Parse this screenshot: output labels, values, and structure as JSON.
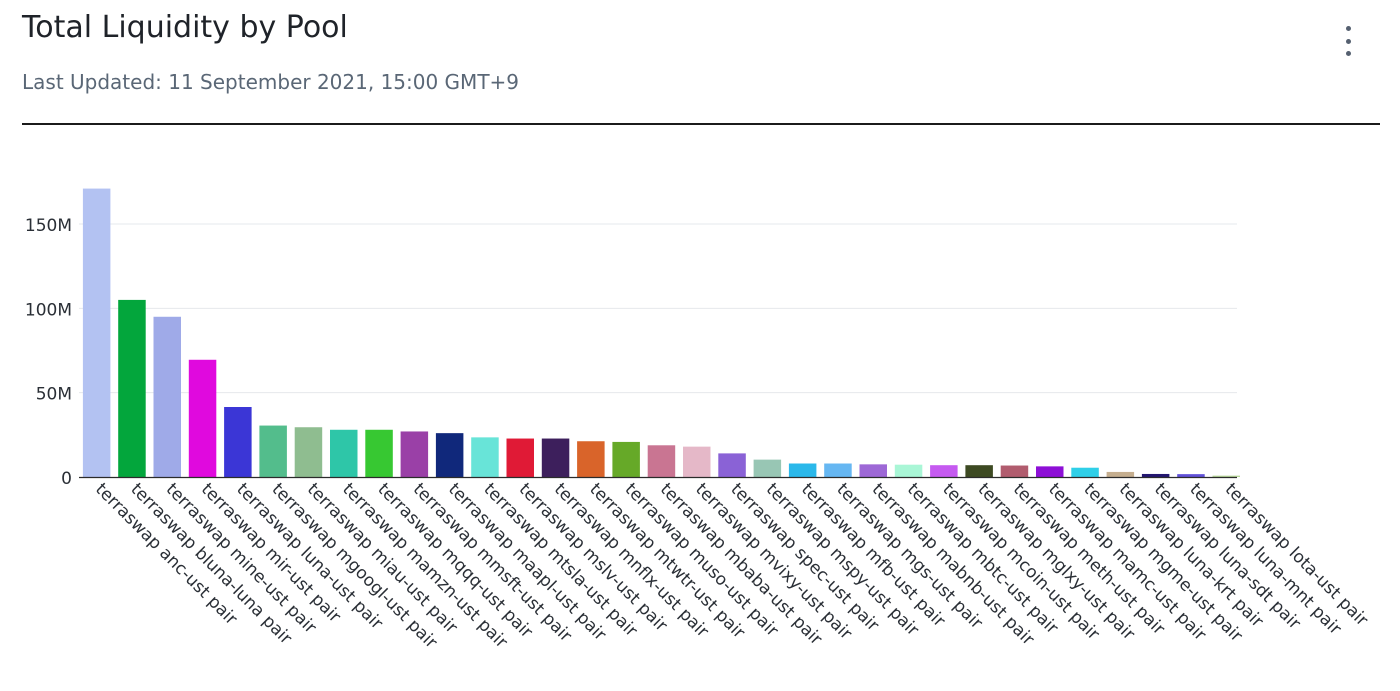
{
  "header": {
    "title": "Total Liquidity by Pool",
    "subtitle": "Last Updated: 11 September 2021, 15:00 GMT+9"
  },
  "menu": {
    "icon": "more-vertical-icon"
  },
  "chart_data": {
    "type": "bar",
    "title": "Total Liquidity by Pool",
    "xlabel": "",
    "ylabel": "",
    "ylim": [
      0,
      175000000
    ],
    "yticks": [
      0,
      50000000,
      100000000,
      150000000
    ],
    "ytick_labels": [
      "0",
      "50M",
      "100M",
      "150M"
    ],
    "grid": true,
    "legend": "none",
    "categories": [
      "terraswap anc-ust pair",
      "terraswap bluna-luna pair",
      "terraswap mine-ust pair",
      "terraswap mir-ust pair",
      "terraswap luna-ust pair",
      "terraswap mgoogl-ust pair",
      "terraswap miau-ust pair",
      "terraswap mamzn-ust pair",
      "terraswap mqqq-ust pair",
      "terraswap mmsft-ust pair",
      "terraswap maapl-ust pair",
      "terraswap mtsla-ust pair",
      "terraswap mslv-ust pair",
      "terraswap mnflx-ust pair",
      "terraswap mtwtr-ust pair",
      "terraswap muso-ust pair",
      "terraswap mbaba-ust pair",
      "terraswap mvixy-ust pair",
      "terraswap spec-ust pair",
      "terraswap mspy-ust pair",
      "terraswap mfb-ust pair",
      "terraswap mgs-ust pair",
      "terraswap mabnb-ust pair",
      "terraswap mbtc-ust pair",
      "terraswap mcoin-ust pair",
      "terraswap mglxy-ust pair",
      "terraswap meth-ust pair",
      "terraswap mamc-ust pair",
      "terraswap mgme-ust pair",
      "terraswap luna-krt pair",
      "terraswap luna-sdt pair",
      "terraswap luna-mnt pair",
      "terraswap lota-ust pair"
    ],
    "values": [
      171000000,
      105000000,
      95000000,
      69500000,
      41500000,
      30500000,
      29500000,
      28000000,
      28000000,
      27000000,
      26000000,
      23500000,
      22800000,
      22800000,
      21200000,
      20800000,
      18800000,
      18000000,
      14000000,
      10300000,
      8000000,
      8000000,
      7500000,
      7300000,
      7000000,
      7000000,
      6800000,
      6300000,
      5500000,
      3000000,
      1800000,
      1700000,
      800000
    ],
    "colors": [
      "#b3c2f2",
      "#03a63c",
      "#9faae8",
      "#e009de",
      "#3b36d6",
      "#53bd8c",
      "#8fbd90",
      "#2ec6a8",
      "#37c832",
      "#9a40a7",
      "#10287b",
      "#68e4d8",
      "#e01a36",
      "#3d1f5c",
      "#d9642a",
      "#66a928",
      "#c97592",
      "#e5b8c8",
      "#8a62d6",
      "#98c6b4",
      "#2bb8ea",
      "#66b7f2",
      "#9d68d6",
      "#a9f6d6",
      "#c55af0",
      "#3d4a22",
      "#b15c6e",
      "#8d0fd6",
      "#2fcfe8",
      "#c5ae8f",
      "#231670",
      "#6151d8",
      "#b9d89a"
    ]
  }
}
